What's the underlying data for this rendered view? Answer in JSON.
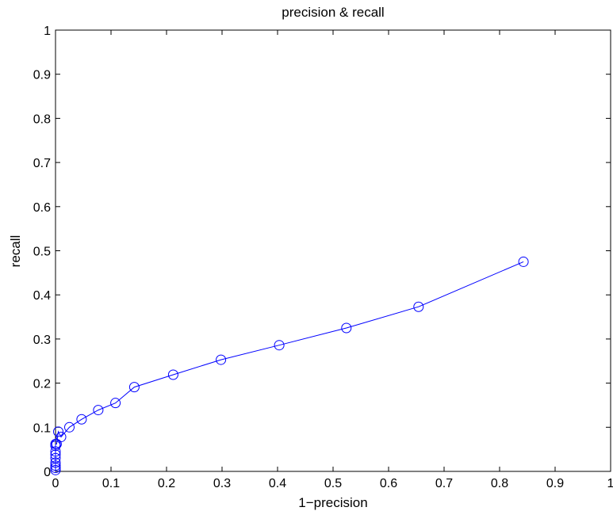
{
  "chart_data": {
    "type": "line",
    "title": "precision & recall",
    "xlabel": "1−precision",
    "ylabel": "recall",
    "xlim": [
      0,
      1
    ],
    "ylim": [
      0,
      1
    ],
    "grid": false,
    "marker": "circle",
    "series_color": "#0000ff",
    "x_ticks": [
      "0",
      "0.1",
      "0.2",
      "0.3",
      "0.4",
      "0.5",
      "0.6",
      "0.7",
      "0.8",
      "0.9",
      "1"
    ],
    "y_ticks": [
      "0",
      "0.1",
      "0.2",
      "0.3",
      "0.4",
      "0.5",
      "0.6",
      "0.7",
      "0.8",
      "0.9",
      "1"
    ],
    "series": [
      {
        "x": [
          0,
          0,
          0,
          0,
          0,
          0,
          0,
          0,
          0,
          0.002,
          0.005,
          0.01,
          0.025,
          0.047,
          0.077,
          0.108,
          0.142,
          0.212,
          0.298,
          0.403,
          0.524,
          0.654,
          0.843
        ],
        "y": [
          0.003,
          0.008,
          0.013,
          0.02,
          0.03,
          0.038,
          0.045,
          0.058,
          0.062,
          0.062,
          0.09,
          0.078,
          0.1,
          0.118,
          0.139,
          0.155,
          0.191,
          0.219,
          0.253,
          0.286,
          0.325,
          0.373,
          0.475
        ]
      }
    ]
  }
}
